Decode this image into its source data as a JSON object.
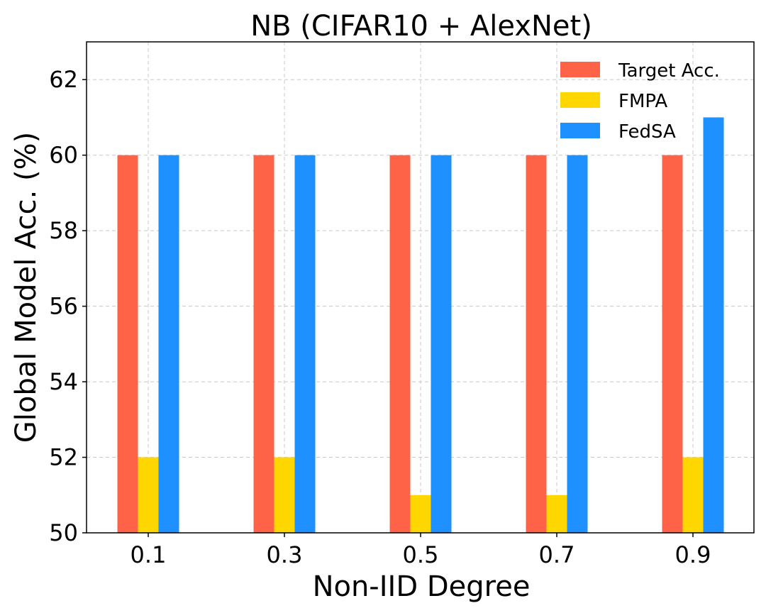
{
  "chart_data": {
    "type": "bar",
    "title": "NB (CIFAR10 + AlexNet)",
    "xlabel": "Non-IID Degree",
    "ylabel": "Global Model Acc. (%)",
    "categories": [
      "0.1",
      "0.3",
      "0.5",
      "0.7",
      "0.9"
    ],
    "series": [
      {
        "name": "Target Acc.",
        "color": "#ff6347",
        "values": [
          60,
          60,
          60,
          60,
          60
        ]
      },
      {
        "name": "FMPA",
        "color": "#ffd700",
        "values": [
          52,
          52,
          51,
          51,
          52
        ]
      },
      {
        "name": "FedSA",
        "color": "#1e90ff",
        "values": [
          60,
          60,
          60,
          60,
          61
        ]
      }
    ],
    "ylim": [
      50,
      63
    ],
    "yticks": [
      50,
      52,
      54,
      56,
      58,
      60,
      62
    ],
    "grid": true,
    "legend_position": "top-right"
  }
}
